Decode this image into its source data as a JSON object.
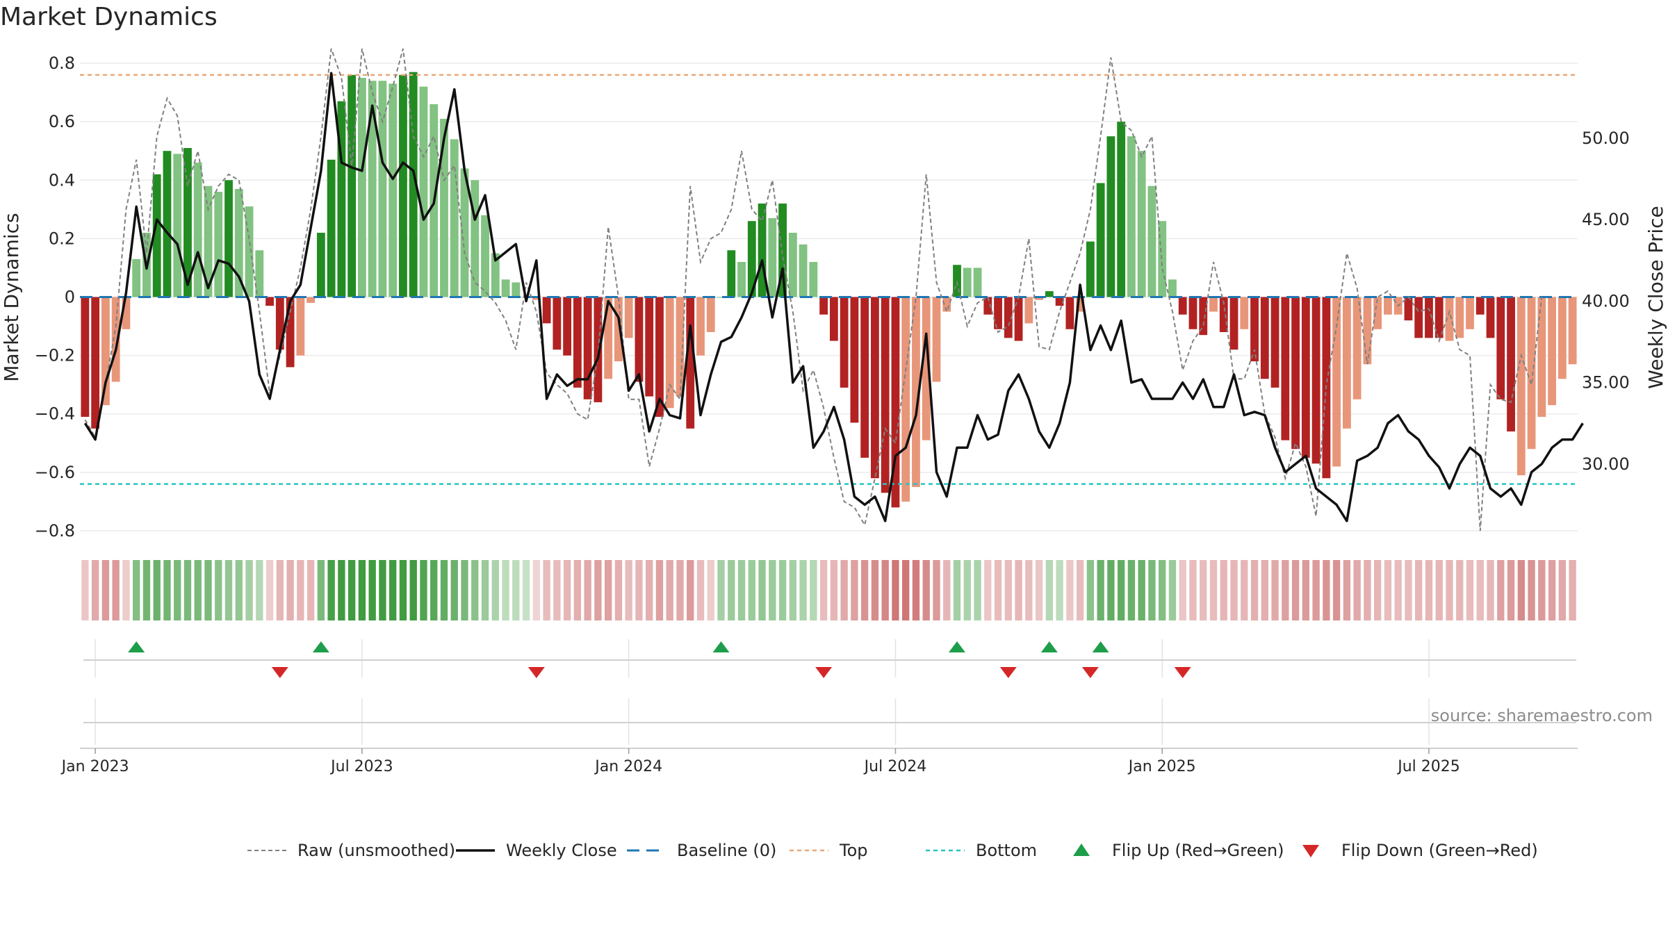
{
  "title": "Market Dynamics",
  "source": "source: sharemaestro.com",
  "colors": {
    "green_dark": "#228b22",
    "green_light": "#82c282",
    "red_dark": "#b22222",
    "red_light": "#e8967a",
    "raw": "#808080",
    "close": "#111111",
    "baseline": "#1f77b4",
    "top": "#e8a878",
    "bottom": "#27c4c4",
    "flip_up": "#1e9e4a",
    "flip_down": "#d62728"
  },
  "legend": [
    {
      "label": "Raw (unsmoothed)",
      "kind": "raw"
    },
    {
      "label": "Weekly Close",
      "kind": "close"
    },
    {
      "label": "Baseline (0)",
      "kind": "baseline"
    },
    {
      "label": "Top",
      "kind": "top"
    },
    {
      "label": "Bottom",
      "kind": "bottom"
    },
    {
      "label": "Flip Up (Red→Green)",
      "kind": "up"
    },
    {
      "label": "Flip Down (Green→Red)",
      "kind": "down"
    }
  ],
  "chart_data": {
    "type": "bar",
    "ylabel": "Market Dynamics",
    "y2label": "Weekly Close Price",
    "ylim": [
      -0.85,
      0.85
    ],
    "y2lim": [
      25.0,
      55.5
    ],
    "yticks": [
      {
        "v": 0.8,
        "label": "0.8"
      },
      {
        "v": 0.6,
        "label": "0.6"
      },
      {
        "v": 0.4,
        "label": "0.4"
      },
      {
        "v": 0.2,
        "label": "0.2"
      },
      {
        "v": 0,
        "label": "0"
      },
      {
        "v": -0.2,
        "label": "−0.2"
      },
      {
        "v": -0.4,
        "label": "−0.4"
      },
      {
        "v": -0.6,
        "label": "−0.6"
      },
      {
        "v": -0.8,
        "label": "−0.8"
      }
    ],
    "y2ticks": [
      {
        "v": 30,
        "label": "30.00"
      },
      {
        "v": 35,
        "label": "35.00"
      },
      {
        "v": 40,
        "label": "40.00"
      },
      {
        "v": 45,
        "label": "45.00"
      },
      {
        "v": 50,
        "label": "50.00"
      }
    ],
    "xticks": [
      {
        "i": 1,
        "label": "Jan 2023"
      },
      {
        "i": 27,
        "label": "Jul 2023"
      },
      {
        "i": 53,
        "label": "Jan 2024"
      },
      {
        "i": 79,
        "label": "Jul 2024"
      },
      {
        "i": 105,
        "label": "Jan 2025"
      },
      {
        "i": 131,
        "label": "Jul 2025"
      }
    ],
    "top_level": 0.76,
    "bottom_level": -0.64,
    "baseline": 0,
    "grid": true,
    "legend_position": "bottom",
    "md": [
      -0.41,
      -0.45,
      -0.37,
      -0.29,
      -0.11,
      0.13,
      0.22,
      0.42,
      0.5,
      0.49,
      0.51,
      0.46,
      0.38,
      0.36,
      0.4,
      0.37,
      0.31,
      0.16,
      -0.03,
      -0.18,
      -0.24,
      -0.2,
      -0.02,
      0.22,
      0.47,
      0.67,
      0.76,
      0.75,
      0.74,
      0.74,
      0.73,
      0.76,
      0.77,
      0.72,
      0.66,
      0.61,
      0.54,
      0.44,
      0.4,
      0.28,
      0.15,
      0.06,
      0.05,
      0.0,
      -0.01,
      -0.09,
      -0.18,
      -0.2,
      -0.31,
      -0.35,
      -0.36,
      -0.28,
      -0.22,
      -0.14,
      -0.29,
      -0.34,
      -0.41,
      -0.38,
      -0.34,
      -0.45,
      -0.2,
      -0.12,
      0.0,
      0.16,
      0.12,
      0.26,
      0.32,
      0.27,
      0.32,
      0.22,
      0.18,
      0.12,
      -0.06,
      -0.15,
      -0.31,
      -0.43,
      -0.55,
      -0.62,
      -0.67,
      -0.72,
      -0.7,
      -0.65,
      -0.49,
      -0.29,
      -0.05,
      0.11,
      0.1,
      0.1,
      -0.06,
      -0.11,
      -0.14,
      -0.15,
      -0.09,
      -0.01,
      0.02,
      -0.03,
      -0.11,
      -0.05,
      0.19,
      0.39,
      0.55,
      0.6,
      0.55,
      0.5,
      0.38,
      0.26,
      0.06,
      -0.06,
      -0.11,
      -0.13,
      -0.05,
      -0.12,
      -0.18,
      -0.11,
      -0.22,
      -0.28,
      -0.31,
      -0.49,
      -0.52,
      -0.55,
      -0.57,
      -0.62,
      -0.58,
      -0.45,
      -0.35,
      -0.23,
      -0.11,
      -0.06,
      -0.06,
      -0.08,
      -0.14,
      -0.14,
      -0.14,
      -0.15,
      -0.14,
      -0.11,
      -0.06,
      -0.14,
      -0.35,
      -0.46,
      -0.61,
      -0.52,
      -0.41,
      -0.37,
      -0.28,
      -0.23
    ],
    "tone": [
      1,
      1,
      0,
      0,
      0,
      0,
      0,
      1,
      1,
      0,
      1,
      0,
      0,
      0,
      1,
      0,
      0,
      0,
      1,
      1,
      1,
      0,
      0,
      1,
      1,
      1,
      1,
      0,
      0,
      0,
      0,
      1,
      1,
      0,
      0,
      0,
      0,
      0,
      0,
      0,
      0,
      0,
      0,
      0,
      0,
      1,
      1,
      1,
      1,
      1,
      1,
      0,
      0,
      0,
      1,
      1,
      1,
      0,
      0,
      1,
      0,
      0,
      0,
      1,
      0,
      1,
      1,
      0,
      1,
      0,
      0,
      0,
      1,
      1,
      1,
      1,
      1,
      1,
      1,
      1,
      0,
      0,
      0,
      0,
      0,
      1,
      0,
      0,
      1,
      1,
      1,
      1,
      0,
      0,
      1,
      1,
      1,
      0,
      1,
      1,
      1,
      1,
      0,
      0,
      0,
      0,
      0,
      1,
      1,
      1,
      0,
      1,
      1,
      0,
      1,
      1,
      1,
      1,
      1,
      1,
      1,
      1,
      0,
      0,
      0,
      0,
      0,
      0,
      0,
      1,
      1,
      1,
      1,
      0,
      0,
      0,
      1,
      1,
      1,
      1,
      0,
      0,
      0,
      0,
      0
    ],
    "raw": [
      -0.42,
      -0.48,
      -0.3,
      -0.1,
      0.3,
      0.47,
      0.15,
      0.55,
      0.68,
      0.62,
      0.38,
      0.5,
      0.3,
      0.38,
      0.42,
      0.4,
      0.2,
      -0.05,
      -0.33,
      -0.2,
      -0.05,
      0.1,
      0.3,
      0.55,
      0.85,
      0.75,
      0.45,
      0.85,
      0.7,
      0.6,
      0.72,
      0.85,
      0.55,
      0.48,
      0.55,
      0.4,
      0.45,
      0.15,
      0.05,
      0.02,
      -0.02,
      -0.08,
      -0.18,
      0.05,
      -0.05,
      -0.26,
      -0.3,
      -0.33,
      -0.4,
      -0.42,
      -0.2,
      0.24,
      0.0,
      -0.35,
      -0.35,
      -0.58,
      -0.45,
      -0.3,
      -0.35,
      0.38,
      0.12,
      0.2,
      0.22,
      0.3,
      0.5,
      0.3,
      0.26,
      0.4,
      0.14,
      -0.05,
      -0.32,
      -0.25,
      -0.38,
      -0.55,
      -0.7,
      -0.72,
      -0.78,
      -0.62,
      -0.45,
      -0.5,
      -0.25,
      0.0,
      0.42,
      0.05,
      -0.05,
      0.05,
      -0.1,
      -0.02,
      0.0,
      -0.12,
      -0.1,
      0.0,
      0.2,
      -0.17,
      -0.18,
      -0.05,
      0.05,
      0.15,
      0.3,
      0.55,
      0.82,
      0.6,
      0.57,
      0.48,
      0.55,
      0.1,
      -0.05,
      -0.25,
      -0.15,
      -0.1,
      0.12,
      -0.02,
      -0.28,
      -0.28,
      -0.18,
      -0.4,
      -0.48,
      -0.62,
      -0.5,
      -0.58,
      -0.75,
      -0.3,
      -0.1,
      0.15,
      0.03,
      -0.23,
      0.0,
      0.02,
      -0.03,
      0.0,
      -0.05,
      -0.04,
      -0.15,
      -0.05,
      -0.18,
      -0.2,
      -0.8,
      -0.3,
      -0.35,
      -0.36,
      -0.2,
      -0.3,
      0.0
    ],
    "close": [
      32.5,
      31.5,
      35.0,
      37.0,
      40.5,
      45.8,
      42.0,
      45.0,
      44.2,
      43.5,
      41.0,
      43.0,
      40.8,
      42.5,
      42.3,
      41.5,
      40.0,
      35.5,
      34.0,
      37.0,
      40.0,
      41.0,
      44.5,
      48.0,
      54.0,
      48.5,
      48.2,
      48.0,
      52.0,
      48.5,
      47.5,
      48.5,
      48.0,
      45.0,
      46.0,
      50.0,
      53.0,
      48.0,
      45.0,
      46.5,
      42.5,
      43.0,
      43.5,
      40.0,
      42.5,
      34.0,
      35.5,
      34.8,
      35.2,
      35.2,
      36.5,
      40.0,
      39.0,
      34.5,
      35.5,
      32.0,
      34.0,
      33.0,
      32.8,
      38.5,
      33.0,
      35.5,
      37.5,
      37.8,
      39.0,
      40.5,
      42.5,
      39.0,
      42.0,
      35.0,
      36.0,
      31.0,
      32.0,
      33.5,
      31.5,
      28.0,
      27.5,
      28.0,
      26.5,
      30.5,
      31.0,
      33.0,
      38.0,
      29.5,
      28.0,
      31.0,
      31.0,
      33.0,
      31.5,
      31.8,
      34.5,
      35.5,
      34.0,
      32.0,
      31.0,
      32.5,
      35.0,
      41.0,
      37.0,
      38.5,
      37.0,
      38.8,
      35.0,
      35.2,
      34.0,
      34.0,
      34.0,
      35.0,
      34.0,
      35.2,
      33.5,
      33.5,
      35.5,
      33.0,
      33.2,
      33.0,
      31.0,
      29.5,
      30.0,
      30.5,
      28.5,
      28.0,
      27.5,
      26.5,
      30.2,
      30.5,
      31.0,
      32.5,
      33.0,
      32.0,
      31.5,
      30.5,
      29.8,
      28.5,
      30.0,
      31.0,
      30.5,
      28.5,
      28.0,
      28.5,
      27.5,
      29.5,
      30.0,
      31.0,
      31.5,
      31.5,
      32.5
    ],
    "heat": [
      -0.25,
      -0.45,
      -0.55,
      -0.55,
      -0.2,
      0.55,
      0.65,
      0.7,
      0.65,
      0.6,
      0.6,
      0.6,
      0.6,
      0.5,
      0.45,
      0.45,
      0.35,
      0.25,
      -0.2,
      -0.35,
      -0.4,
      -0.35,
      -0.35,
      0.6,
      0.9,
      0.95,
      0.95,
      0.95,
      0.95,
      0.95,
      0.95,
      0.95,
      0.95,
      0.85,
      0.8,
      0.75,
      0.7,
      0.6,
      0.5,
      0.4,
      0.3,
      0.2,
      0.2,
      0.15,
      -0.15,
      -0.3,
      -0.3,
      -0.35,
      -0.4,
      -0.45,
      -0.5,
      -0.5,
      -0.4,
      -0.3,
      -0.35,
      -0.4,
      -0.5,
      -0.45,
      -0.45,
      -0.55,
      -0.3,
      -0.2,
      0.35,
      0.4,
      0.4,
      0.4,
      0.45,
      0.4,
      0.4,
      0.35,
      0.3,
      0.25,
      -0.3,
      -0.35,
      -0.45,
      -0.5,
      -0.6,
      -0.65,
      -0.7,
      -0.8,
      -0.8,
      -0.75,
      -0.65,
      -0.55,
      -0.35,
      0.35,
      0.3,
      0.3,
      -0.25,
      -0.3,
      -0.3,
      -0.35,
      -0.3,
      -0.25,
      0.25,
      0.2,
      -0.25,
      -0.3,
      0.5,
      0.7,
      0.75,
      0.75,
      0.7,
      0.7,
      0.6,
      0.55,
      0.4,
      -0.25,
      -0.3,
      -0.3,
      -0.3,
      -0.35,
      -0.35,
      -0.35,
      -0.4,
      -0.4,
      -0.45,
      -0.5,
      -0.55,
      -0.55,
      -0.55,
      -0.6,
      -0.6,
      -0.5,
      -0.45,
      -0.4,
      -0.35,
      -0.3,
      -0.3,
      -0.3,
      -0.35,
      -0.35,
      -0.35,
      -0.35,
      -0.35,
      -0.3,
      -0.3,
      -0.35,
      -0.5,
      -0.55,
      -0.65,
      -0.6,
      -0.55,
      -0.5,
      -0.45,
      -0.4
    ],
    "flips_up": [
      5,
      23,
      62,
      85,
      94,
      99
    ],
    "flips_down": [
      19,
      44,
      72,
      90,
      98,
      107
    ]
  }
}
